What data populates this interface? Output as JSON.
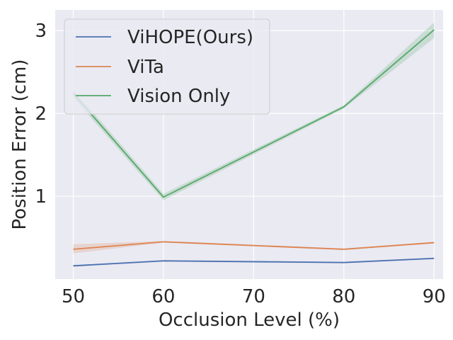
{
  "chart_data": {
    "type": "line",
    "title": "",
    "xlabel": "Occlusion Level (%)",
    "ylabel": "Position Error (cm)",
    "x": [
      50,
      60,
      80,
      90
    ],
    "xticks": [
      50,
      60,
      70,
      80,
      90
    ],
    "yticks": [
      1,
      2,
      3
    ],
    "xlim": [
      48,
      91
    ],
    "ylim": [
      0.0,
      3.25
    ],
    "grid": true,
    "legend_position": "top-left",
    "series": [
      {
        "name": "ViHOPE(Ours)",
        "color": "#4c72b0",
        "values": [
          0.16,
          0.22,
          0.2,
          0.25
        ],
        "band_lower": [
          0.15,
          0.21,
          0.19,
          0.24
        ],
        "band_upper": [
          0.17,
          0.23,
          0.21,
          0.26
        ]
      },
      {
        "name": "ViTa",
        "color": "#dd8452",
        "values": [
          0.36,
          0.45,
          0.36,
          0.44
        ],
        "band_lower": [
          0.31,
          0.44,
          0.35,
          0.43
        ],
        "band_upper": [
          0.42,
          0.46,
          0.37,
          0.45
        ]
      },
      {
        "name": "Vision Only",
        "color": "#55a868",
        "values": [
          2.24,
          0.99,
          2.08,
          3.01
        ],
        "band_lower": [
          2.19,
          0.95,
          2.06,
          2.91
        ],
        "band_upper": [
          2.29,
          1.03,
          2.1,
          3.1
        ]
      }
    ]
  }
}
